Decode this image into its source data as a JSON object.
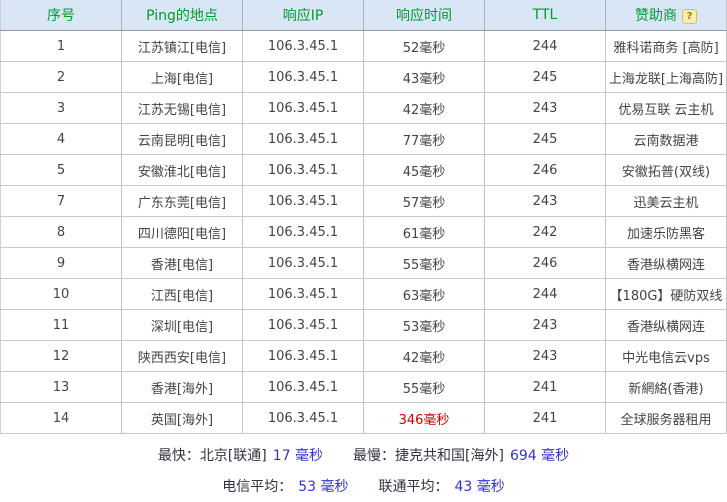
{
  "table": {
    "columns": [
      "序号",
      "Ping的地点",
      "响应IP",
      "响应时间",
      "TTL",
      "赞助商"
    ],
    "help_icon": "?",
    "rows": [
      {
        "index": "1",
        "location": "江苏镇江[电信]",
        "ip": "106.3.45.1",
        "time": "52毫秒",
        "ttl": "244",
        "sponsor": "雅科诺商务 [高防]"
      },
      {
        "index": "2",
        "location": "上海[电信]",
        "ip": "106.3.45.1",
        "time": "43毫秒",
        "ttl": "245",
        "sponsor": "上海龙联[上海高防]"
      },
      {
        "index": "3",
        "location": "江苏无锡[电信]",
        "ip": "106.3.45.1",
        "time": "42毫秒",
        "ttl": "243",
        "sponsor": "优易互联 云主机"
      },
      {
        "index": "4",
        "location": "云南昆明[电信]",
        "ip": "106.3.45.1",
        "time": "77毫秒",
        "ttl": "245",
        "sponsor": "云南数据港"
      },
      {
        "index": "5",
        "location": "安徽淮北[电信]",
        "ip": "106.3.45.1",
        "time": "45毫秒",
        "ttl": "246",
        "sponsor": "安徽拓普(双线)"
      },
      {
        "index": "7",
        "location": "广东东莞[电信]",
        "ip": "106.3.45.1",
        "time": "57毫秒",
        "ttl": "243",
        "sponsor": "迅美云主机"
      },
      {
        "index": "8",
        "location": "四川德阳[电信]",
        "ip": "106.3.45.1",
        "time": "61毫秒",
        "ttl": "242",
        "sponsor": "加速乐防黑客"
      },
      {
        "index": "9",
        "location": "香港[电信]",
        "ip": "106.3.45.1",
        "time": "55毫秒",
        "ttl": "246",
        "sponsor": "香港纵横网连"
      },
      {
        "index": "10",
        "location": "江西[电信]",
        "ip": "106.3.45.1",
        "time": "63毫秒",
        "ttl": "244",
        "sponsor": "【180G】硬防双线"
      },
      {
        "index": "11",
        "location": "深圳[电信]",
        "ip": "106.3.45.1",
        "time": "53毫秒",
        "ttl": "243",
        "sponsor": "香港纵横网连"
      },
      {
        "index": "12",
        "location": "陕西西安[电信]",
        "ip": "106.3.45.1",
        "time": "42毫秒",
        "ttl": "243",
        "sponsor": "中光电信云vps"
      },
      {
        "index": "13",
        "location": "香港[海外]",
        "ip": "106.3.45.1",
        "time": "55毫秒",
        "ttl": "241",
        "sponsor": "新網絡(香港)"
      },
      {
        "index": "14",
        "location": "英国[海外]",
        "ip": "106.3.45.1",
        "time": "346毫秒",
        "ttl": "241",
        "sponsor": "全球服务器租用"
      }
    ]
  },
  "summary": {
    "fastest_label": "最快：北京[联通]",
    "fastest_value": "17 毫秒",
    "slowest_label": "最慢：捷克共和国[海外]",
    "slowest_value": "694 毫秒",
    "telecom_avg_label": "电信平均：",
    "telecom_avg_value": "53 毫秒",
    "unicom_avg_label": "联通平均：",
    "unicom_avg_value": "43 毫秒"
  },
  "colors": {
    "header_bg": "#d8e6f6",
    "header_text": "#009933",
    "link_green": "#339933",
    "alert_red": "#cc0000",
    "summary_blue": "#3333cc"
  }
}
